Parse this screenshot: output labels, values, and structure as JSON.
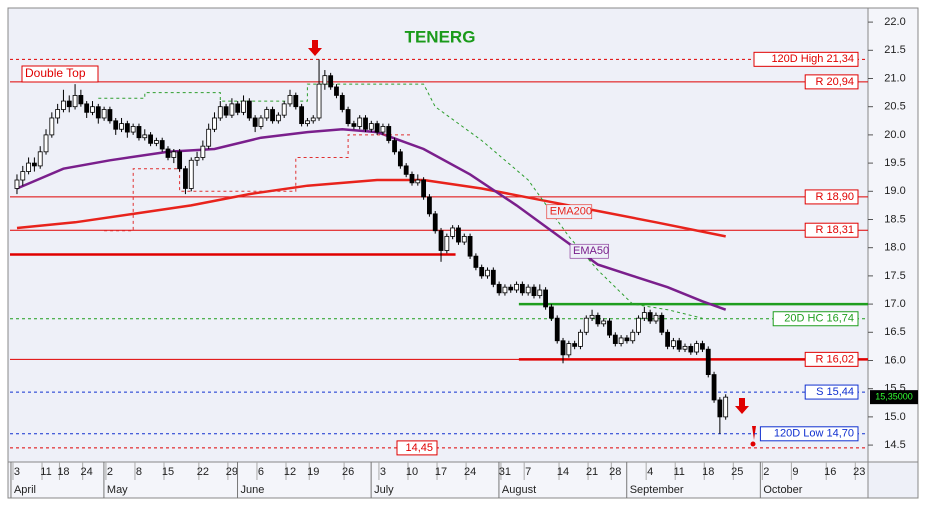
{
  "chart_data": {
    "type": "candlestick",
    "title": "TENERG",
    "ylim": [
      14.2,
      22.25
    ],
    "yticks": [
      {
        "value": 14.5,
        "label": "14.5"
      },
      {
        "value": 15.0,
        "label": "15.0"
      },
      {
        "value": 15.5,
        "label": "15.5"
      },
      {
        "value": 16.0,
        "label": "16.0"
      },
      {
        "value": 16.5,
        "label": "16.5"
      },
      {
        "value": 17.0,
        "label": "17.0"
      },
      {
        "value": 17.5,
        "label": "17.5"
      },
      {
        "value": 18.0,
        "label": "18.0"
      },
      {
        "value": 18.5,
        "label": "18.5"
      },
      {
        "value": 19.0,
        "label": "19.0"
      },
      {
        "value": 19.5,
        "label": "19.5"
      },
      {
        "value": 20.0,
        "label": "20.0"
      },
      {
        "value": 20.5,
        "label": "20.5"
      },
      {
        "value": 21.0,
        "label": "21.0"
      },
      {
        "value": 21.5,
        "label": "21.5"
      },
      {
        "value": 22.0,
        "label": "22.0"
      }
    ],
    "xlim": [
      -1.2,
      146.5
    ],
    "xticks": [
      {
        "value": 0,
        "label": "3"
      },
      {
        "value": 5,
        "label": "11"
      },
      {
        "value": 8,
        "label": "18"
      },
      {
        "value": 12,
        "label": "24"
      },
      {
        "value": 16,
        "label": "2"
      },
      {
        "value": 21,
        "label": "8"
      },
      {
        "value": 26,
        "label": "15"
      },
      {
        "value": 32,
        "label": "22"
      },
      {
        "value": 37,
        "label": "29"
      },
      {
        "value": 42,
        "label": "6"
      },
      {
        "value": 47,
        "label": "12"
      },
      {
        "value": 51,
        "label": "19"
      },
      {
        "value": 57,
        "label": "26"
      },
      {
        "value": 63,
        "label": "3"
      },
      {
        "value": 68,
        "label": "10"
      },
      {
        "value": 73,
        "label": "17"
      },
      {
        "value": 78,
        "label": "24"
      },
      {
        "value": 84,
        "label": "31"
      },
      {
        "value": 88,
        "label": "7"
      },
      {
        "value": 94,
        "label": "14"
      },
      {
        "value": 99,
        "label": "21"
      },
      {
        "value": 103,
        "label": "28"
      },
      {
        "value": 109,
        "label": "4"
      },
      {
        "value": 114,
        "label": "11"
      },
      {
        "value": 119,
        "label": "18"
      },
      {
        "value": 124,
        "label": "25"
      },
      {
        "value": 129,
        "label": "2"
      },
      {
        "value": 134,
        "label": "9"
      },
      {
        "value": 140,
        "label": "16"
      },
      {
        "value": 145,
        "label": "23"
      }
    ],
    "months": [
      {
        "value": 0,
        "label": "April"
      },
      {
        "value": 16,
        "label": "May"
      },
      {
        "value": 39,
        "label": "June"
      },
      {
        "value": 62,
        "label": "July"
      },
      {
        "value": 84,
        "label": "August"
      },
      {
        "value": 106,
        "label": "September"
      },
      {
        "value": 129,
        "label": "October"
      }
    ],
    "ohlc": [
      [
        19.05,
        19.3,
        18.95,
        19.2
      ],
      [
        19.2,
        19.45,
        19.1,
        19.35
      ],
      [
        19.35,
        19.6,
        19.3,
        19.5
      ],
      [
        19.5,
        19.6,
        19.35,
        19.45
      ],
      [
        19.45,
        19.8,
        19.4,
        19.7
      ],
      [
        19.7,
        20.1,
        19.65,
        20.0
      ],
      [
        20.0,
        20.4,
        19.95,
        20.3
      ],
      [
        20.3,
        20.55,
        20.2,
        20.45
      ],
      [
        20.45,
        20.8,
        20.4,
        20.6
      ],
      [
        20.6,
        20.7,
        20.4,
        20.5
      ],
      [
        20.5,
        20.9,
        20.45,
        20.7
      ],
      [
        20.7,
        20.8,
        20.5,
        20.55
      ],
      [
        20.55,
        20.6,
        20.3,
        20.4
      ],
      [
        20.4,
        20.6,
        20.35,
        20.5
      ],
      [
        20.5,
        20.55,
        20.2,
        20.3
      ],
      [
        20.3,
        20.5,
        20.25,
        20.45
      ],
      [
        20.45,
        20.5,
        20.2,
        20.25
      ],
      [
        20.25,
        20.3,
        20.0,
        20.1
      ],
      [
        20.1,
        20.3,
        20.05,
        20.2
      ],
      [
        20.2,
        20.25,
        19.95,
        20.05
      ],
      [
        20.05,
        20.2,
        20.0,
        20.15
      ],
      [
        20.15,
        20.2,
        19.9,
        19.95
      ],
      [
        19.95,
        20.1,
        19.9,
        20.0
      ],
      [
        20.0,
        20.05,
        19.8,
        19.85
      ],
      [
        19.85,
        19.95,
        19.8,
        19.9
      ],
      [
        19.9,
        19.95,
        19.7,
        19.75
      ],
      [
        19.75,
        19.8,
        19.55,
        19.6
      ],
      [
        19.6,
        19.75,
        19.5,
        19.7
      ],
      [
        19.7,
        19.75,
        19.35,
        19.4
      ],
      [
        19.4,
        19.45,
        18.95,
        19.05
      ],
      [
        19.05,
        19.6,
        19.0,
        19.55
      ],
      [
        19.55,
        19.7,
        19.45,
        19.6
      ],
      [
        19.6,
        19.9,
        19.55,
        19.8
      ],
      [
        19.8,
        20.2,
        19.75,
        20.1
      ],
      [
        20.1,
        20.4,
        20.05,
        20.3
      ],
      [
        20.3,
        20.6,
        20.25,
        20.5
      ],
      [
        20.5,
        20.55,
        20.3,
        20.35
      ],
      [
        20.35,
        20.65,
        20.3,
        20.55
      ],
      [
        20.55,
        20.6,
        20.35,
        20.4
      ],
      [
        20.4,
        20.7,
        20.35,
        20.6
      ],
      [
        20.6,
        20.65,
        20.25,
        20.3
      ],
      [
        20.3,
        20.35,
        20.05,
        20.15
      ],
      [
        20.15,
        20.35,
        20.1,
        20.3
      ],
      [
        20.3,
        20.5,
        20.25,
        20.45
      ],
      [
        20.45,
        20.5,
        20.2,
        20.25
      ],
      [
        20.25,
        20.4,
        20.2,
        20.35
      ],
      [
        20.35,
        20.6,
        20.3,
        20.55
      ],
      [
        20.55,
        20.8,
        20.5,
        20.7
      ],
      [
        20.7,
        20.75,
        20.45,
        20.5
      ],
      [
        20.5,
        20.55,
        20.15,
        20.2
      ],
      [
        20.2,
        20.3,
        20.15,
        20.25
      ],
      [
        20.25,
        20.35,
        20.2,
        20.3
      ],
      [
        20.3,
        21.34,
        20.25,
        20.9
      ],
      [
        20.9,
        21.15,
        20.8,
        21.05
      ],
      [
        21.05,
        21.1,
        20.8,
        20.85
      ],
      [
        20.85,
        20.9,
        20.65,
        20.7
      ],
      [
        20.7,
        20.75,
        20.4,
        20.45
      ],
      [
        20.45,
        20.5,
        20.15,
        20.2
      ],
      [
        20.2,
        20.25,
        20.1,
        20.15
      ],
      [
        20.15,
        20.35,
        20.1,
        20.3
      ],
      [
        20.3,
        20.35,
        20.05,
        20.1
      ],
      [
        20.1,
        20.25,
        20.05,
        20.2
      ],
      [
        20.2,
        20.25,
        20.0,
        20.05
      ],
      [
        20.05,
        20.2,
        20.0,
        20.15
      ],
      [
        20.15,
        20.2,
        19.85,
        19.9
      ],
      [
        19.9,
        19.95,
        19.65,
        19.7
      ],
      [
        19.7,
        19.75,
        19.4,
        19.45
      ],
      [
        19.45,
        19.5,
        19.25,
        19.3
      ],
      [
        19.3,
        19.35,
        19.1,
        19.15
      ],
      [
        19.15,
        19.3,
        19.1,
        19.2
      ],
      [
        19.2,
        19.25,
        18.85,
        18.9
      ],
      [
        18.9,
        18.95,
        18.55,
        18.6
      ],
      [
        18.6,
        18.65,
        18.25,
        18.3
      ],
      [
        18.3,
        18.35,
        17.75,
        17.95
      ],
      [
        17.95,
        18.25,
        17.9,
        18.2
      ],
      [
        18.2,
        18.4,
        18.15,
        18.35
      ],
      [
        18.35,
        18.4,
        18.05,
        18.1
      ],
      [
        18.1,
        18.25,
        18.05,
        18.2
      ],
      [
        18.2,
        18.25,
        17.8,
        17.85
      ],
      [
        17.85,
        17.9,
        17.6,
        17.65
      ],
      [
        17.65,
        17.7,
        17.45,
        17.5
      ],
      [
        17.5,
        17.65,
        17.45,
        17.6
      ],
      [
        17.6,
        17.65,
        17.3,
        17.35
      ],
      [
        17.35,
        17.4,
        17.15,
        17.2
      ],
      [
        17.2,
        17.35,
        17.15,
        17.3
      ],
      [
        17.3,
        17.35,
        17.2,
        17.25
      ],
      [
        17.25,
        17.4,
        17.2,
        17.35
      ],
      [
        17.35,
        17.4,
        17.15,
        17.2
      ],
      [
        17.2,
        17.35,
        17.15,
        17.3
      ],
      [
        17.3,
        17.35,
        17.1,
        17.15
      ],
      [
        17.15,
        17.35,
        17.1,
        17.25
      ],
      [
        17.25,
        17.3,
        16.9,
        16.95
      ],
      [
        16.95,
        17.0,
        16.7,
        16.75
      ],
      [
        16.75,
        16.8,
        16.3,
        16.35
      ],
      [
        16.35,
        16.4,
        15.95,
        16.1
      ],
      [
        16.1,
        16.35,
        16.05,
        16.3
      ],
      [
        16.3,
        16.35,
        16.2,
        16.25
      ],
      [
        16.25,
        16.55,
        16.2,
        16.5
      ],
      [
        16.5,
        16.8,
        16.45,
        16.75
      ],
      [
        16.75,
        16.9,
        16.7,
        16.8
      ],
      [
        16.8,
        16.85,
        16.6,
        16.65
      ],
      [
        16.65,
        16.75,
        16.6,
        16.7
      ],
      [
        16.7,
        16.75,
        16.4,
        16.45
      ],
      [
        16.45,
        16.5,
        16.25,
        16.3
      ],
      [
        16.3,
        16.45,
        16.25,
        16.4
      ],
      [
        16.4,
        16.45,
        16.3,
        16.35
      ],
      [
        16.35,
        16.55,
        16.3,
        16.5
      ],
      [
        16.5,
        16.8,
        16.45,
        16.75
      ],
      [
        16.75,
        16.95,
        16.7,
        16.85
      ],
      [
        16.85,
        16.9,
        16.65,
        16.7
      ],
      [
        16.7,
        16.85,
        16.65,
        16.8
      ],
      [
        16.8,
        16.85,
        16.45,
        16.5
      ],
      [
        16.5,
        16.55,
        16.2,
        16.25
      ],
      [
        16.25,
        16.4,
        16.2,
        16.35
      ],
      [
        16.35,
        16.4,
        16.15,
        16.2
      ],
      [
        16.2,
        16.3,
        16.15,
        16.25
      ],
      [
        16.25,
        16.3,
        16.1,
        16.15
      ],
      [
        16.15,
        16.35,
        16.1,
        16.3
      ],
      [
        16.3,
        16.35,
        16.15,
        16.2
      ],
      [
        16.2,
        16.25,
        15.7,
        15.75
      ],
      [
        15.75,
        15.8,
        15.25,
        15.3
      ],
      [
        15.3,
        15.35,
        14.7,
        15.0
      ],
      [
        15.0,
        15.4,
        14.95,
        15.35
      ]
    ],
    "series": [
      {
        "name": "EMA200",
        "color": "#e8231c",
        "x": [
          0,
          10,
          20,
          30,
          40,
          50,
          62,
          70,
          80,
          90,
          100,
          110,
          122
        ],
        "values": [
          18.35,
          18.45,
          18.6,
          18.75,
          18.95,
          19.1,
          19.2,
          19.2,
          19.05,
          18.85,
          18.65,
          18.45,
          18.2
        ]
      },
      {
        "name": "EMA50",
        "color": "#7a1f8c",
        "x": [
          0,
          8,
          16,
          26,
          34,
          42,
          50,
          56,
          62,
          70,
          78,
          86,
          94,
          100,
          106,
          112,
          118,
          122
        ],
        "values": [
          19.05,
          19.4,
          19.55,
          19.7,
          19.75,
          19.95,
          20.05,
          20.1,
          20.05,
          19.75,
          19.3,
          18.75,
          18.15,
          17.7,
          17.5,
          17.3,
          17.05,
          16.9
        ]
      },
      {
        "color": "#2e9e2e",
        "dash": true,
        "x": [
          14,
          22,
          22,
          35,
          35,
          50,
          50,
          70,
          72,
          80,
          88,
          95,
          100,
          106,
          112,
          118
        ],
        "values": [
          20.65,
          20.65,
          20.75,
          20.75,
          20.6,
          20.6,
          20.9,
          20.9,
          20.5,
          19.9,
          19.2,
          18.2,
          17.6,
          17.0,
          16.9,
          16.75
        ]
      },
      {
        "color": "#e03030",
        "dash": true,
        "x": [
          15,
          20,
          20,
          28,
          28,
          48,
          48,
          57,
          57,
          68
        ],
        "values": [
          18.3,
          18.3,
          19.4,
          19.4,
          19.0,
          19.0,
          19.6,
          19.6,
          20.0,
          20.0
        ]
      }
    ],
    "levels": [
      {
        "value": 21.34,
        "label": "120D High 21,34",
        "color": "#e00000",
        "style": "dashed"
      },
      {
        "value": 20.94,
        "label": "R 20,94",
        "color": "#e00000",
        "style": "solid"
      },
      {
        "value": 18.9,
        "label": "R 18,90",
        "color": "#e00000",
        "style": "solid"
      },
      {
        "value": 18.31,
        "label": "R 18,31",
        "color": "#e00000",
        "style": "solid"
      },
      {
        "value": 17.88,
        "color": "#e00000",
        "style": "thick",
        "x": [
          -1.2,
          75.5
        ]
      },
      {
        "value": 17.0,
        "color": "#1e9e1e",
        "style": "thick",
        "x": [
          86.4,
          146.5
        ]
      },
      {
        "value": 16.74,
        "label": "20D HC 16,74",
        "color": "#1e9e1e",
        "style": "dashed"
      },
      {
        "value": 16.02,
        "label": "R 16,02",
        "color": "#e00000",
        "style": "solid"
      },
      {
        "value": 16.02,
        "color": "#e00000",
        "style": "thick",
        "x": [
          86.4,
          146.5
        ]
      },
      {
        "value": 15.44,
        "label": "S 15,44",
        "color": "#1030d0",
        "style": "dashed"
      },
      {
        "value": 14.7,
        "label": "120D Low 14,70",
        "color": "#1030d0",
        "style": "dashed"
      },
      {
        "value": 14.45,
        "label": "14,45",
        "color": "#e00000",
        "style": "dashed"
      }
    ],
    "annotations": [
      "Double Top"
    ],
    "last_price": {
      "value": 15.35,
      "label": "15,35000"
    }
  }
}
